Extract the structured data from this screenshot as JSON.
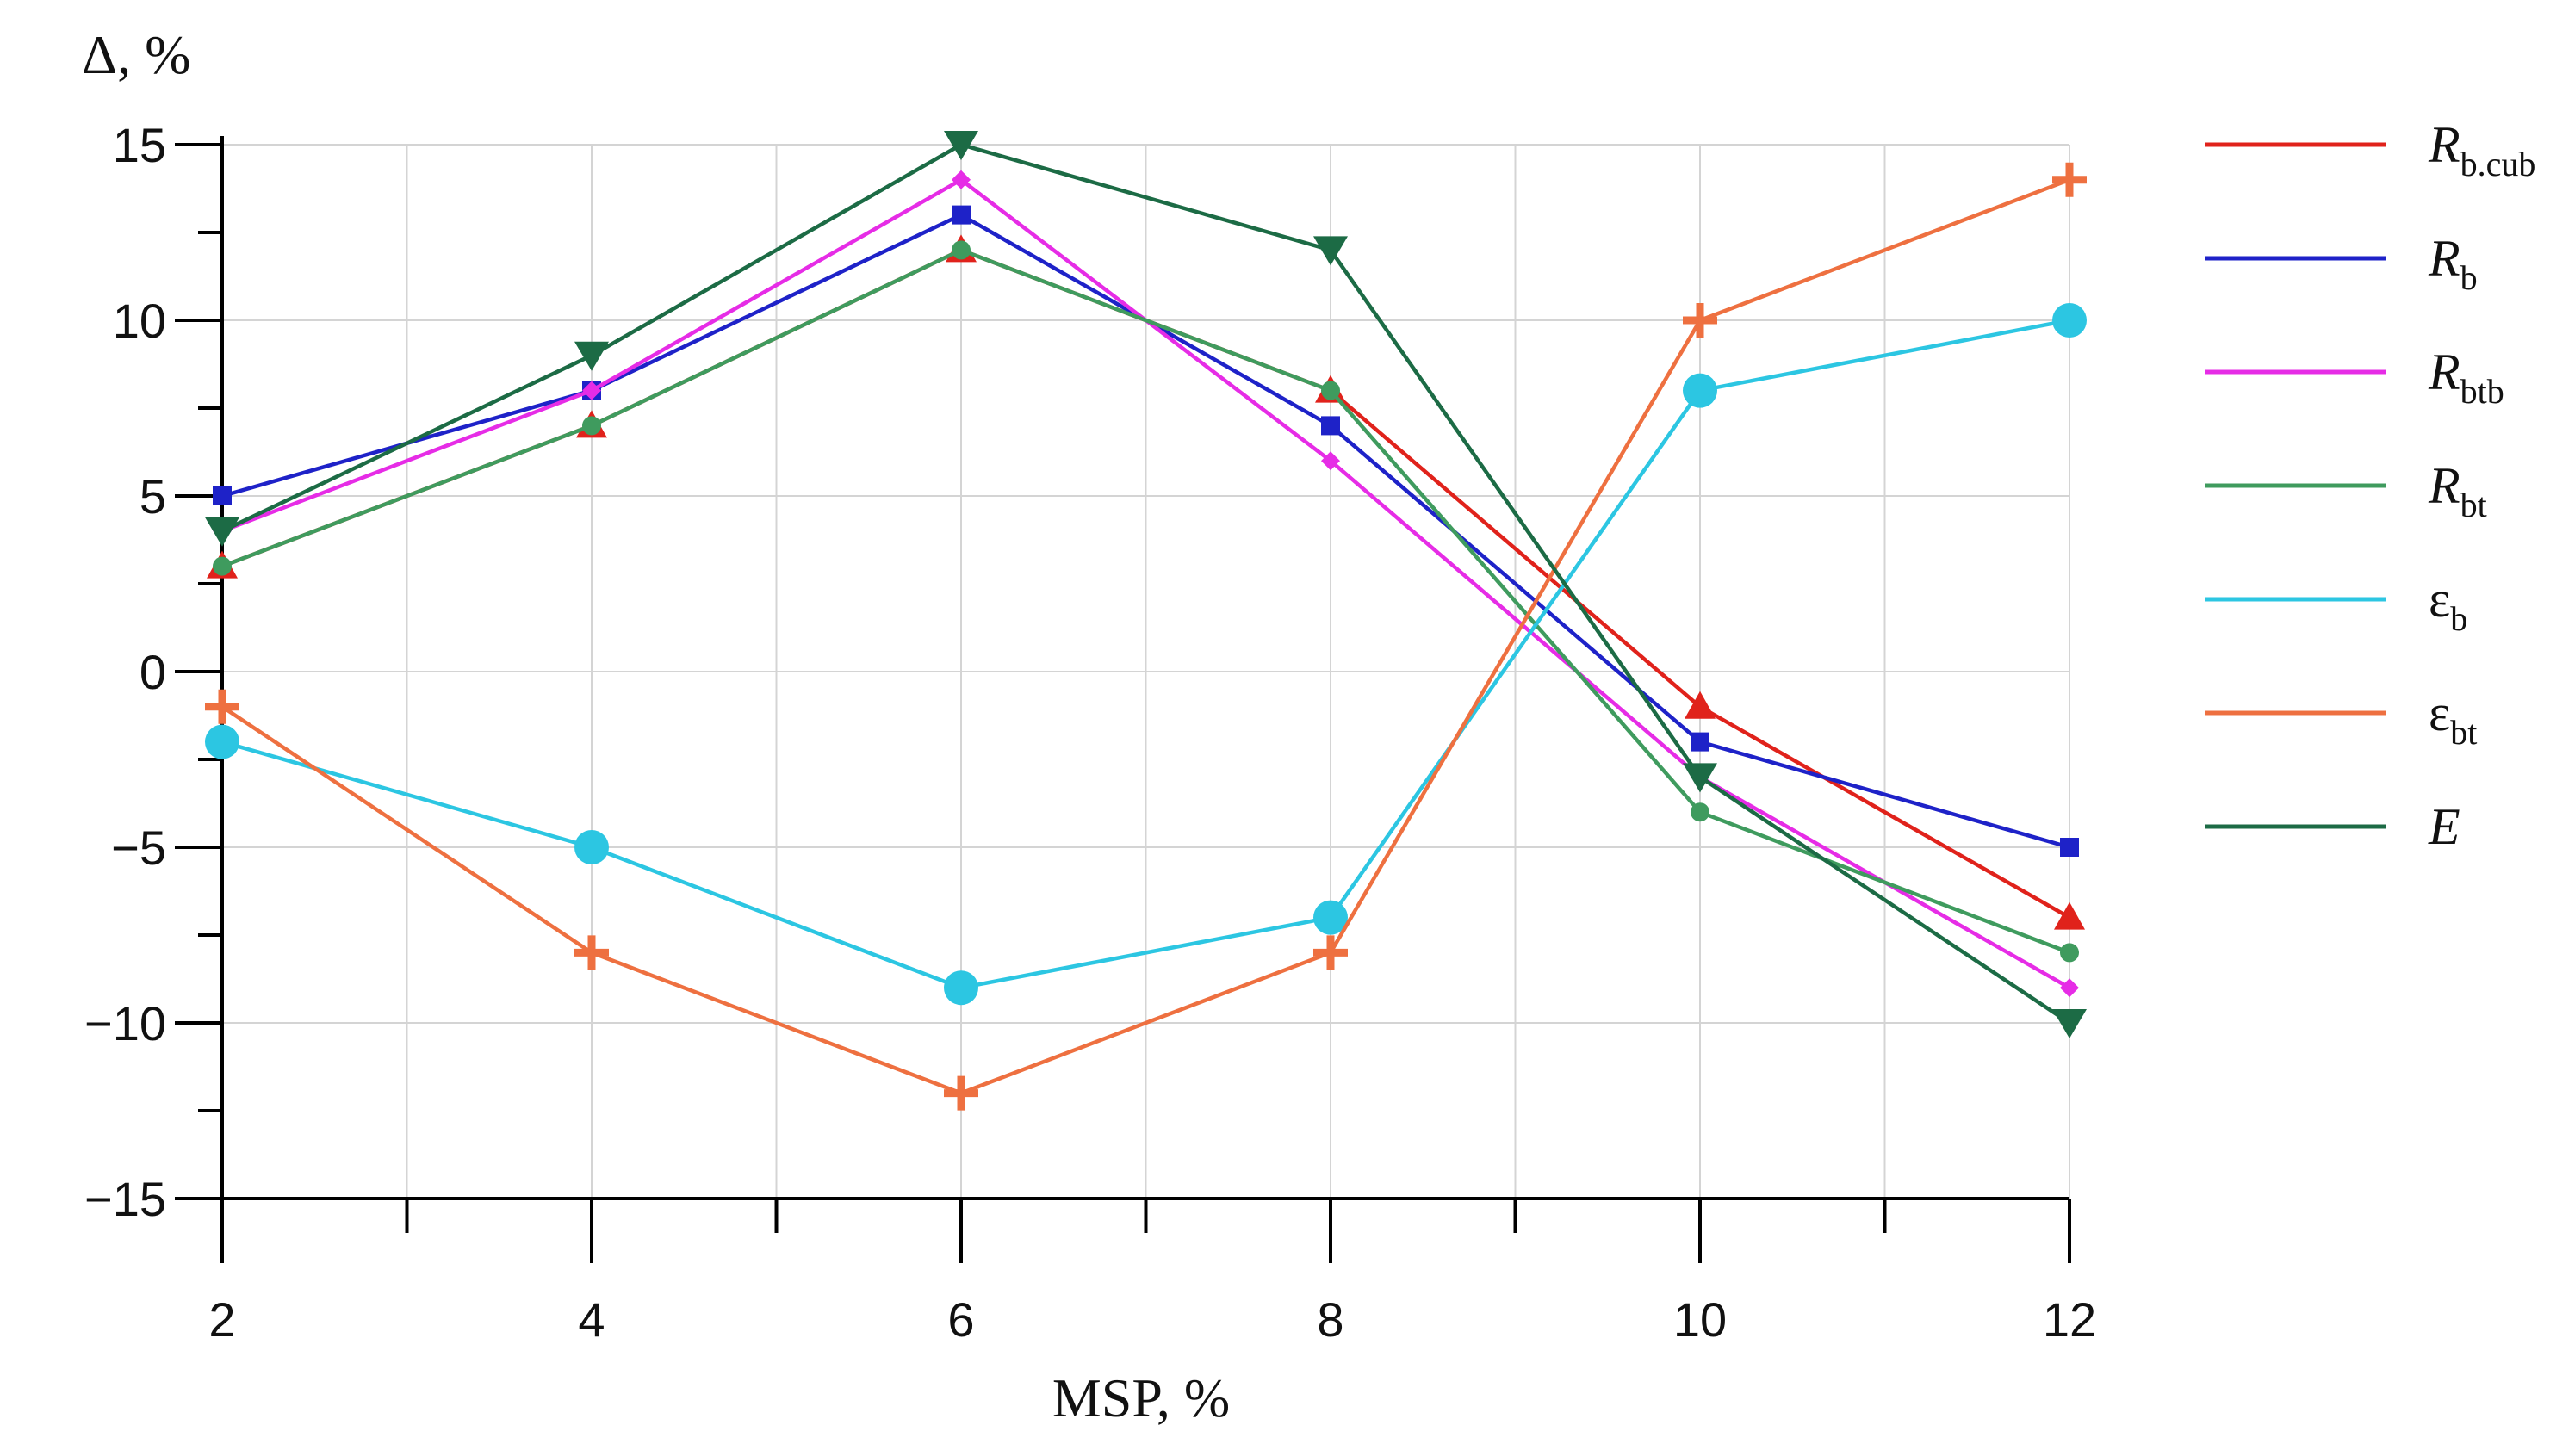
{
  "chart_data": {
    "type": "line",
    "title": "",
    "ylabel": "Δ, %",
    "xlabel": "MSP, %",
    "x": [
      2,
      4,
      6,
      8,
      10,
      12
    ],
    "xlim": [
      2,
      12
    ],
    "ylim": [
      -15,
      15
    ],
    "x_ticks": [
      "2",
      "4",
      "6",
      "8",
      "10",
      "12"
    ],
    "y_ticks": [
      "15",
      "10",
      "5",
      "0",
      "−5",
      "−10",
      "−15"
    ],
    "grid": true,
    "legend_position": "right",
    "series": [
      {
        "name": "Rb.cub",
        "symbol": "R",
        "sub": "b.cub",
        "italic": true,
        "color": "#e0221b",
        "marker": "triangle-up",
        "values": [
          3,
          7,
          12,
          8,
          -1,
          -7
        ]
      },
      {
        "name": "Rb",
        "symbol": "R",
        "sub": "b",
        "italic": true,
        "color": "#1e22c8",
        "marker": "square",
        "values": [
          5,
          8,
          13,
          7,
          -2,
          -5
        ]
      },
      {
        "name": "Rbtb",
        "symbol": "R",
        "sub": "btb",
        "italic": true,
        "color": "#e62ce6",
        "marker": "diamond",
        "values": [
          4,
          8,
          14,
          6,
          -3,
          -9
        ]
      },
      {
        "name": "Rbt",
        "symbol": "R",
        "sub": "bt",
        "italic": true,
        "color": "#3f9b5e",
        "marker": "circle-small",
        "values": [
          3,
          7,
          12,
          8,
          -4,
          -8
        ]
      },
      {
        "name": "εb",
        "symbol": "ε",
        "sub": "b",
        "italic": false,
        "color": "#2cc6e2",
        "marker": "circle",
        "values": [
          -2,
          -5,
          -9,
          -7,
          8,
          10
        ]
      },
      {
        "name": "εbt",
        "symbol": "ε",
        "sub": "bt",
        "italic": false,
        "color": "#ee7040",
        "marker": "plus",
        "values": [
          -1,
          -8,
          -12,
          -8,
          10,
          14
        ]
      },
      {
        "name": "E",
        "symbol": "E",
        "sub": "",
        "italic": true,
        "color": "#1c6b45",
        "marker": "triangle-down",
        "values": [
          4,
          9,
          15,
          12,
          -3,
          -10
        ]
      }
    ]
  }
}
